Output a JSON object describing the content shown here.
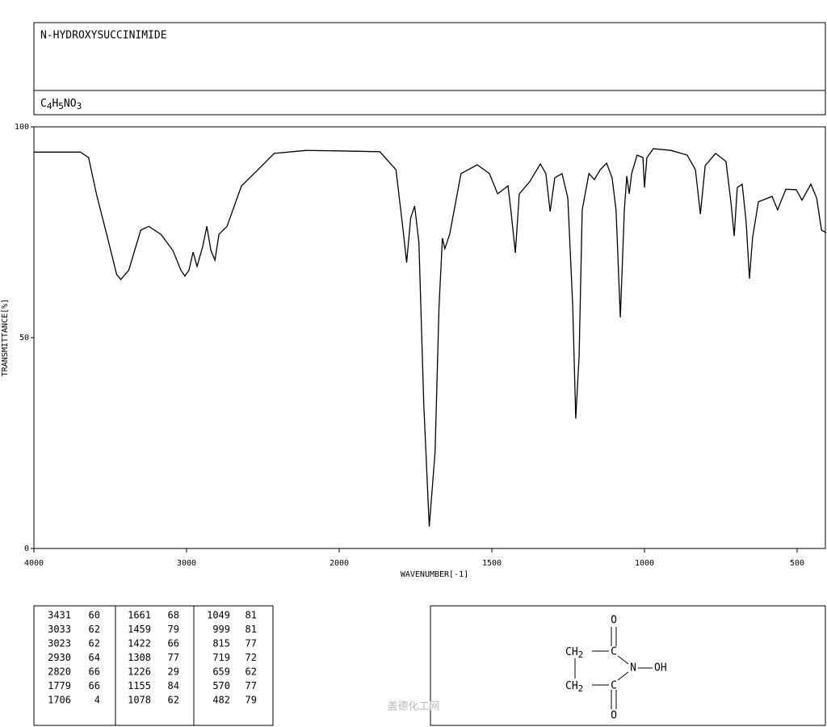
{
  "header": {
    "title": "N-HYDROXYSUCCINIMIDE",
    "formula": [
      "C",
      "4",
      "H",
      "5",
      "NO",
      "3"
    ]
  },
  "chart_data": {
    "type": "line",
    "color": "#000000",
    "x_label": "WAVENUMBER[-1]",
    "y_label": "TRANSMITTANCE[%]",
    "xlim": [
      4000,
      400
    ],
    "xticks": [
      4000,
      3000,
      2000,
      1500,
      1000,
      500
    ],
    "ylim": [
      0,
      100
    ],
    "yticks": [
      0,
      50,
      100
    ],
    "x": [
      4000,
      3695,
      3642,
      3590,
      3510,
      3458,
      3431,
      3379,
      3300,
      3247,
      3168,
      3090,
      3037,
      3011,
      2984,
      2957,
      2931,
      2894,
      2867,
      2841,
      2814,
      2788,
      2735,
      2640,
      2533,
      2426,
      2213,
      2000,
      1867,
      1814,
      1792,
      1779,
      1766,
      1753,
      1739,
      1723,
      1705,
      1686,
      1673,
      1662,
      1654,
      1638,
      1601,
      1548,
      1508,
      1481,
      1447,
      1437,
      1423,
      1410,
      1376,
      1341,
      1323,
      1309,
      1294,
      1270,
      1251,
      1235,
      1225,
      1214,
      1204,
      1182,
      1164,
      1145,
      1124,
      1106,
      1093,
      1079,
      1066,
      1058,
      1050,
      1042,
      1024,
      1005,
      1000,
      992,
      971,
      913,
      860,
      833,
      817,
      801,
      767,
      733,
      717,
      706,
      696,
      680,
      667,
      656,
      646,
      627,
      582,
      564,
      537,
      503,
      484,
      455,
      436,
      420,
      405
    ],
    "values": [
      94,
      94,
      92.7,
      84,
      72.6,
      65,
      63.8,
      66,
      75.5,
      76.4,
      74.5,
      70.7,
      66,
      64.6,
      66,
      70.3,
      66.9,
      71.6,
      76.4,
      70.7,
      68.4,
      74.5,
      76.4,
      86,
      89.8,
      93.7,
      94.4,
      94.3,
      94.1,
      89.8,
      76.4,
      67.8,
      78.4,
      81.2,
      72.6,
      34.3,
      5.2,
      22.8,
      57.3,
      73.6,
      71.1,
      74.5,
      88.9,
      91,
      88.9,
      84.1,
      86,
      79.9,
      70.1,
      84.1,
      87,
      91.2,
      88.9,
      79.9,
      87.9,
      88.9,
      83.1,
      57.3,
      30.8,
      45.8,
      80.3,
      88.9,
      87.5,
      89.8,
      91.4,
      87.9,
      80.3,
      54.8,
      80.3,
      88.3,
      84.1,
      88.9,
      93.3,
      92.7,
      85.6,
      92.7,
      94.8,
      94.4,
      93.3,
      89.8,
      79.3,
      90.8,
      93.7,
      91.8,
      82.2,
      74.1,
      85.6,
      86.4,
      77.4,
      64,
      73.6,
      82.2,
      83.5,
      80.3,
      85.2,
      85.1,
      82.6,
      86.4,
      83.1,
      75.5,
      74.9
    ]
  },
  "table": {
    "rows": [
      [
        [
          "3431",
          "60"
        ],
        [
          "1661",
          "68"
        ],
        [
          "1049",
          "81"
        ]
      ],
      [
        [
          "3033",
          "62"
        ],
        [
          "1459",
          "79"
        ],
        [
          "999",
          "81"
        ]
      ],
      [
        [
          "3023",
          "62"
        ],
        [
          "1422",
          "66"
        ],
        [
          "815",
          "77"
        ]
      ],
      [
        [
          "2930",
          "64"
        ],
        [
          "1308",
          "77"
        ],
        [
          "719",
          "72"
        ]
      ],
      [
        [
          "2820",
          "66"
        ],
        [
          "1226",
          "29"
        ],
        [
          "659",
          "62"
        ]
      ],
      [
        [
          "1779",
          "66"
        ],
        [
          "1155",
          "84"
        ],
        [
          "570",
          "77"
        ]
      ],
      [
        [
          "1706",
          "4"
        ],
        [
          "1078",
          "62"
        ],
        [
          "482",
          "79"
        ]
      ]
    ]
  },
  "structure": {
    "o_top": "O",
    "ch2_top": [
      "CH",
      "2"
    ],
    "c_top": "C",
    "n": "N",
    "oh": "OH",
    "ch2_bottom": [
      "CH",
      "2"
    ],
    "c_bottom": "C",
    "o_bottom": "O"
  },
  "watermark": "盖德化工网"
}
